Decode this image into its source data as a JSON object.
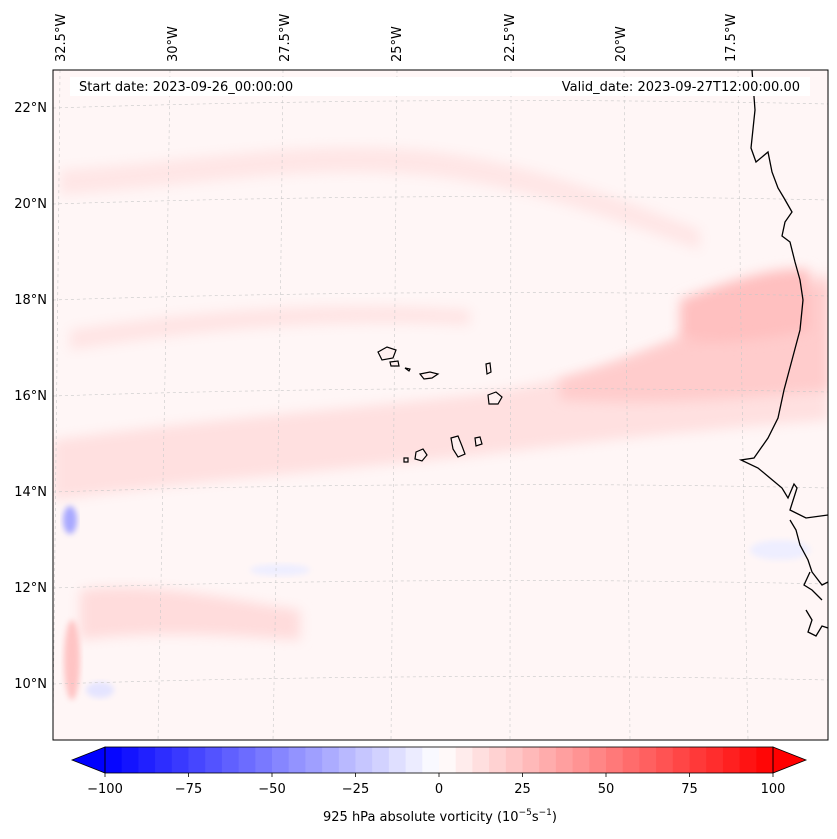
{
  "map": {
    "start_date": "Start date: 2023-09-26_00:00:00",
    "valid_date": "Valid_date: 2023-09-27T12:00:00.00",
    "lon_ticks": [
      "32.5°W",
      "30°W",
      "27.5°W",
      "25°W",
      "22.5°W",
      "20°W",
      "17.5°W"
    ],
    "lat_ticks": [
      "22°N",
      "20°N",
      "18°N",
      "16°N",
      "14°N",
      "12°N",
      "10°N"
    ],
    "gridlines": true,
    "field": "925 hPa absolute vorticity",
    "region": "Cabo Verde / West African coast"
  },
  "colorbar": {
    "colormap": "bwr",
    "vmin": -100,
    "vmax": 100,
    "extend": "both",
    "tick_labels": [
      "−100",
      "−75",
      "−50",
      "−25",
      "0",
      "25",
      "50",
      "75",
      "100"
    ],
    "label_main": "925 hPa absolute vorticity (10",
    "label_exp1": "−5",
    "label_mid": "s",
    "label_exp2": "−1",
    "label_end": ")",
    "color_low": "#0000ff",
    "color_mid": "#ffffff",
    "color_high": "#ff0000"
  }
}
